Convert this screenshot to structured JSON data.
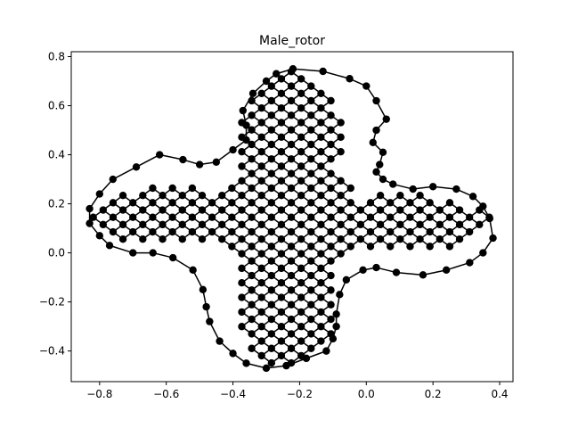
{
  "chart_data": {
    "type": "network",
    "title": "Male_rotor",
    "xlabel": "",
    "ylabel": "",
    "xlim": [
      -0.885,
      0.44
    ],
    "ylim": [
      -0.525,
      0.82
    ],
    "x_ticks": [
      -0.8,
      -0.6,
      -0.4,
      -0.2,
      0.0,
      0.2,
      0.4
    ],
    "x_tick_labels": [
      "−0.8",
      "−0.6",
      "−0.4",
      "−0.2",
      "0.0",
      "0.2",
      "0.4"
    ],
    "y_ticks": [
      -0.4,
      -0.2,
      0.0,
      0.2,
      0.4,
      0.6,
      0.8
    ],
    "y_tick_labels": [
      "−0.4",
      "−0.2",
      "0.0",
      "0.2",
      "0.4",
      "0.6",
      "0.8"
    ],
    "grid": false,
    "node_color": "#000000",
    "edge_color": "#000000",
    "shape": {
      "center": [
        -0.225,
        0.145
      ],
      "lobes": [
        {
          "center": [
            -0.23,
            0.46
          ],
          "rx": 0.16,
          "ry": 0.29
        },
        {
          "center": [
            -0.24,
            -0.18
          ],
          "rx": 0.16,
          "ry": 0.29
        },
        {
          "center": [
            0.1,
            0.12
          ],
          "rx": 0.28,
          "ry": 0.12
        },
        {
          "center": [
            -0.56,
            0.15
          ],
          "rx": 0.28,
          "ry": 0.12
        }
      ],
      "hub": {
        "center": [
          -0.225,
          0.145
        ],
        "rx": 0.22,
        "ry": 0.21
      },
      "grid_spacing": 0.042,
      "grid_angle_deg": 45
    },
    "boundary_nodes": [
      [
        -0.22,
        0.75
      ],
      [
        -0.13,
        0.74
      ],
      [
        -0.05,
        0.71
      ],
      [
        0.0,
        0.68
      ],
      [
        0.03,
        0.62
      ],
      [
        0.06,
        0.545
      ],
      [
        0.03,
        0.5
      ],
      [
        0.02,
        0.45
      ],
      [
        0.05,
        0.41
      ],
      [
        0.04,
        0.36
      ],
      [
        0.03,
        0.33
      ],
      [
        0.05,
        0.3
      ],
      [
        0.08,
        0.28
      ],
      [
        0.14,
        0.26
      ],
      [
        0.2,
        0.27
      ],
      [
        0.27,
        0.26
      ],
      [
        0.32,
        0.23
      ],
      [
        0.35,
        0.19
      ],
      [
        0.37,
        0.14
      ],
      [
        0.38,
        0.06
      ],
      [
        0.35,
        0.0
      ],
      [
        0.31,
        -0.04
      ],
      [
        0.24,
        -0.07
      ],
      [
        0.17,
        -0.09
      ],
      [
        0.09,
        -0.08
      ],
      [
        0.03,
        -0.06
      ],
      [
        -0.01,
        -0.07
      ],
      [
        -0.06,
        -0.11
      ],
      [
        -0.08,
        -0.17
      ],
      [
        -0.09,
        -0.25
      ],
      [
        -0.09,
        -0.3
      ],
      [
        -0.1,
        -0.35
      ],
      [
        -0.12,
        -0.4
      ],
      [
        -0.18,
        -0.43
      ],
      [
        -0.24,
        -0.46
      ],
      [
        -0.3,
        -0.47
      ],
      [
        -0.36,
        -0.45
      ],
      [
        -0.4,
        -0.41
      ],
      [
        -0.44,
        -0.36
      ],
      [
        -0.47,
        -0.28
      ],
      [
        -0.48,
        -0.22
      ],
      [
        -0.49,
        -0.15
      ],
      [
        -0.52,
        -0.07
      ],
      [
        -0.58,
        -0.02
      ],
      [
        -0.64,
        0.0
      ],
      [
        -0.7,
        0.0
      ],
      [
        -0.77,
        0.03
      ],
      [
        -0.8,
        0.07
      ],
      [
        -0.83,
        0.12
      ],
      [
        -0.83,
        0.18
      ],
      [
        -0.8,
        0.24
      ],
      [
        -0.76,
        0.3
      ],
      [
        -0.69,
        0.35
      ],
      [
        -0.62,
        0.4
      ],
      [
        -0.55,
        0.38
      ],
      [
        -0.5,
        0.36
      ],
      [
        -0.45,
        0.37
      ],
      [
        -0.4,
        0.42
      ],
      [
        -0.36,
        0.46
      ],
      [
        -0.36,
        0.52
      ],
      [
        -0.37,
        0.58
      ],
      [
        -0.34,
        0.65
      ],
      [
        -0.3,
        0.7
      ],
      [
        -0.27,
        0.73
      ]
    ]
  }
}
